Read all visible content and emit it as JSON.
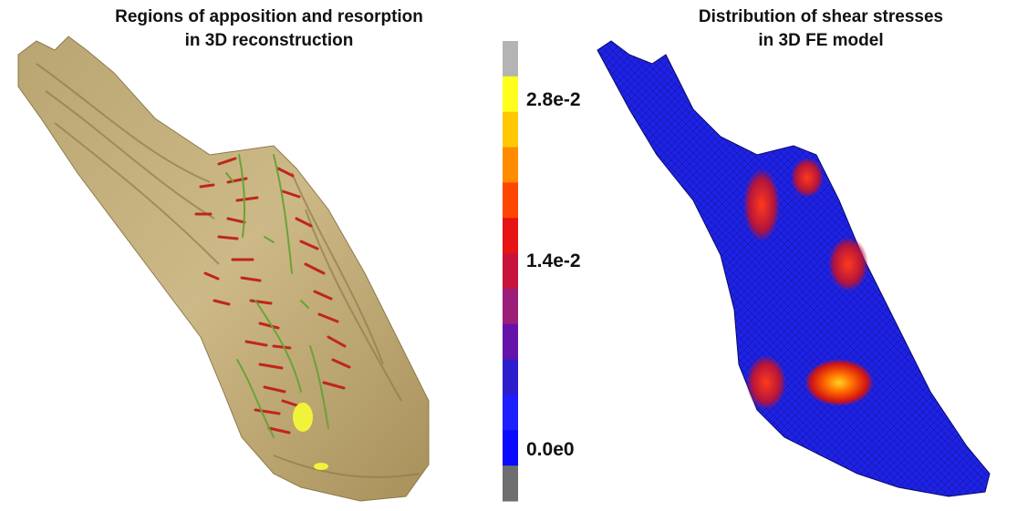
{
  "left_panel": {
    "title": "Regions of apposition and resorption\nin 3D reconstruction"
  },
  "right_panel": {
    "title": "Distribution of shear stresses\nin 3D FE model"
  },
  "color_scale": {
    "labels": [
      "2.8e-2",
      "1.4e-2",
      "0.0e0"
    ],
    "colors": [
      "#b4b4b4",
      "#ffff1e",
      "#ffc800",
      "#ff8c00",
      "#ff4600",
      "#e61414",
      "#c8143c",
      "#9b1e78",
      "#6414aa",
      "#2d1ecd",
      "#1e1eff",
      "#0a0aff",
      "#6e6e6e"
    ]
  }
}
